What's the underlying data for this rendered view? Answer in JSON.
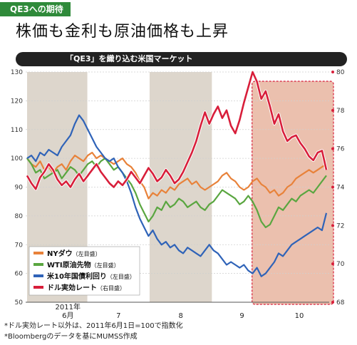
{
  "header": {
    "tag": "QE3への期待",
    "headline": "株価も金利も原油価格も上昇",
    "chart_title": "「QE3」を織り込む米国マーケット"
  },
  "notes": [
    "*ドル実効レート以外は、2011年6月1日=100で指数化",
    "*Bloombergのデータを基にMUMSS作成"
  ],
  "colors": {
    "ny_dow": "#e8823a",
    "wti": "#5aa640",
    "us10y": "#2f63b8",
    "usd_effective": "#d81e3a",
    "month_band": "#ddd6cc",
    "highlight": "#e8b5a0"
  },
  "chart_data": {
    "type": "line",
    "x_labels": [
      "2011年\n6月",
      "7",
      "8",
      "9",
      "10"
    ],
    "x_range": [
      "2011-06-01",
      "2011-10-28"
    ],
    "left_axis": {
      "ticks": [
        50,
        60,
        70,
        80,
        90,
        100,
        110,
        120,
        130
      ],
      "ylim": [
        50,
        130
      ]
    },
    "right_axis": {
      "ticks": [
        68,
        70,
        72,
        74,
        76,
        78,
        80
      ],
      "ylim": [
        68,
        80
      ]
    },
    "shaded_months": [
      "6",
      "8"
    ],
    "highlight_period": [
      "2011-09-21",
      "2011-10-28"
    ],
    "series": [
      {
        "name": "NYダウ",
        "axis_note": "（左目盛）",
        "axis": "left",
        "values": [
          100,
          98,
          97,
          99,
          96,
          97,
          95,
          97,
          98,
          96,
          99,
          101,
          100,
          99,
          101,
          102,
          100,
          101,
          100,
          99,
          98,
          99,
          100,
          98,
          97,
          95,
          92,
          90,
          86,
          88,
          87,
          89,
          88,
          90,
          89,
          91,
          92,
          93,
          91,
          92,
          90,
          89,
          90,
          91,
          92,
          94,
          95,
          93,
          92,
          90,
          89,
          90,
          92,
          93,
          91,
          90,
          88,
          89,
          87,
          88,
          90,
          91,
          93,
          94,
          95,
          96,
          95,
          96,
          97,
          98
        ]
      },
      {
        "name": "WTI原油先物",
        "axis_note": "（左目盛）",
        "axis": "left",
        "values": [
          100,
          98,
          95,
          96,
          93,
          94,
          95,
          96,
          93,
          95,
          97,
          96,
          94,
          96,
          98,
          99,
          97,
          99,
          100,
          98,
          96,
          97,
          95,
          93,
          91,
          88,
          84,
          81,
          78,
          80,
          83,
          82,
          85,
          83,
          84,
          86,
          85,
          83,
          84,
          85,
          83,
          82,
          84,
          85,
          87,
          89,
          88,
          87,
          86,
          84,
          85,
          87,
          85,
          82,
          78,
          76,
          77,
          80,
          83,
          82,
          84,
          86,
          85,
          87,
          88,
          89,
          88,
          90,
          92,
          94
        ]
      },
      {
        "name": "米10年国債利回り",
        "axis_note": "（左目盛）",
        "axis": "left",
        "values": [
          100,
          101,
          99,
          102,
          101,
          103,
          102,
          101,
          104,
          106,
          108,
          112,
          115,
          113,
          110,
          107,
          104,
          102,
          100,
          99,
          100,
          97,
          95,
          92,
          88,
          83,
          79,
          76,
          73,
          75,
          72,
          70,
          71,
          69,
          70,
          68,
          67,
          69,
          68,
          67,
          66,
          68,
          70,
          68,
          67,
          65,
          63,
          64,
          63,
          62,
          63,
          61,
          60,
          62,
          59,
          60,
          62,
          64,
          67,
          66,
          68,
          70,
          71,
          72,
          73,
          74,
          75,
          76,
          75,
          81
        ]
      },
      {
        "name": "ドル実効レート",
        "axis_note": "（右目盛）",
        "axis": "right",
        "values": [
          74.6,
          74.2,
          73.9,
          74.5,
          74.8,
          75.2,
          74.9,
          74.4,
          74.1,
          74.3,
          74.0,
          74.4,
          74.7,
          74.3,
          74.6,
          74.9,
          75.2,
          74.8,
          74.5,
          74.2,
          74.0,
          74.3,
          74.1,
          74.4,
          74.8,
          74.5,
          74.2,
          74.6,
          75.0,
          74.7,
          74.3,
          74.5,
          74.9,
          74.6,
          74.2,
          74.4,
          74.8,
          75.3,
          75.8,
          76.4,
          77.2,
          77.9,
          77.3,
          77.8,
          78.2,
          77.6,
          78.0,
          77.2,
          76.8,
          77.5,
          78.4,
          79.2,
          80.0,
          79.5,
          78.6,
          79.0,
          78.2,
          77.3,
          77.8,
          76.9,
          76.4,
          76.6,
          76.7,
          76.3,
          76.0,
          75.6,
          75.4,
          75.8,
          75.9,
          74.9
        ]
      }
    ]
  }
}
